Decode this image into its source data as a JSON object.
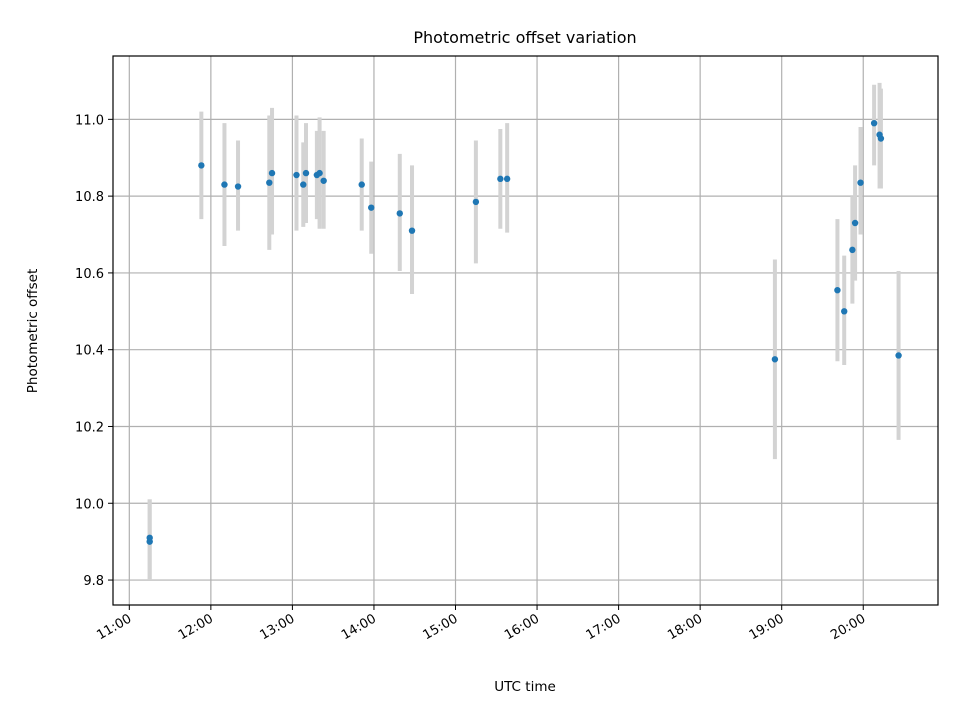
{
  "chart_data": {
    "type": "scatter",
    "title": "Photometric offset variation",
    "xlabel": "UTC time",
    "ylabel": "Photometric offset",
    "grid": true,
    "xlim": [
      "10:48",
      "20:55"
    ],
    "ylim": [
      9.735,
      11.165
    ],
    "x_ticks": [
      "11:00",
      "12:00",
      "13:00",
      "14:00",
      "15:00",
      "16:00",
      "17:00",
      "18:00",
      "19:00",
      "20:00"
    ],
    "y_ticks": [
      9.8,
      10.0,
      10.2,
      10.4,
      10.6,
      10.8,
      11.0
    ],
    "x_tick_rotation": 30,
    "colors": {
      "point": "#1f77b4",
      "errorbar": "#d3d3d3"
    },
    "series": [
      {
        "points": [
          {
            "time": "11:15",
            "value": 9.9,
            "err_low": 9.8,
            "err_high": 10.01
          },
          {
            "time": "11:15",
            "value": 9.91,
            "err_low": 9.8,
            "err_high": 10.01
          },
          {
            "time": "11:53",
            "value": 10.88,
            "err_low": 10.74,
            "err_high": 11.02
          },
          {
            "time": "12:10",
            "value": 10.83,
            "err_low": 10.67,
            "err_high": 10.99
          },
          {
            "time": "12:20",
            "value": 10.825,
            "err_low": 10.71,
            "err_high": 10.945
          },
          {
            "time": "12:43",
            "value": 10.835,
            "err_low": 10.66,
            "err_high": 11.01
          },
          {
            "time": "12:45",
            "value": 10.86,
            "err_low": 10.7,
            "err_high": 11.03
          },
          {
            "time": "13:03",
            "value": 10.855,
            "err_low": 10.71,
            "err_high": 11.01
          },
          {
            "time": "13:08",
            "value": 10.83,
            "err_low": 10.72,
            "err_high": 10.94
          },
          {
            "time": "13:10",
            "value": 10.86,
            "err_low": 10.73,
            "err_high": 10.99
          },
          {
            "time": "13:18",
            "value": 10.855,
            "err_low": 10.74,
            "err_high": 10.97
          },
          {
            "time": "13:20",
            "value": 10.86,
            "err_low": 10.715,
            "err_high": 11.005
          },
          {
            "time": "13:23",
            "value": 10.84,
            "err_low": 10.715,
            "err_high": 10.97
          },
          {
            "time": "13:51",
            "value": 10.83,
            "err_low": 10.71,
            "err_high": 10.95
          },
          {
            "time": "13:58",
            "value": 10.77,
            "err_low": 10.65,
            "err_high": 10.89
          },
          {
            "time": "14:19",
            "value": 10.755,
            "err_low": 10.605,
            "err_high": 10.91
          },
          {
            "time": "14:28",
            "value": 10.71,
            "err_low": 10.545,
            "err_high": 10.88
          },
          {
            "time": "15:15",
            "value": 10.785,
            "err_low": 10.625,
            "err_high": 10.945
          },
          {
            "time": "15:33",
            "value": 10.845,
            "err_low": 10.715,
            "err_high": 10.975
          },
          {
            "time": "15:38",
            "value": 10.845,
            "err_low": 10.705,
            "err_high": 10.99
          },
          {
            "time": "18:55",
            "value": 10.375,
            "err_low": 10.115,
            "err_high": 10.635
          },
          {
            "time": "19:41",
            "value": 10.555,
            "err_low": 10.37,
            "err_high": 10.74
          },
          {
            "time": "19:46",
            "value": 10.5,
            "err_low": 10.36,
            "err_high": 10.645
          },
          {
            "time": "19:52",
            "value": 10.66,
            "err_low": 10.52,
            "err_high": 10.8
          },
          {
            "time": "19:54",
            "value": 10.73,
            "err_low": 10.58,
            "err_high": 10.88
          },
          {
            "time": "19:58",
            "value": 10.835,
            "err_low": 10.7,
            "err_high": 10.98
          },
          {
            "time": "20:08",
            "value": 10.99,
            "err_low": 10.88,
            "err_high": 11.09
          },
          {
            "time": "20:12",
            "value": 10.96,
            "err_low": 10.82,
            "err_high": 11.095
          },
          {
            "time": "20:13",
            "value": 10.95,
            "err_low": 10.82,
            "err_high": 11.08
          },
          {
            "time": "20:26",
            "value": 10.385,
            "err_low": 10.165,
            "err_high": 10.605
          }
        ]
      }
    ]
  }
}
